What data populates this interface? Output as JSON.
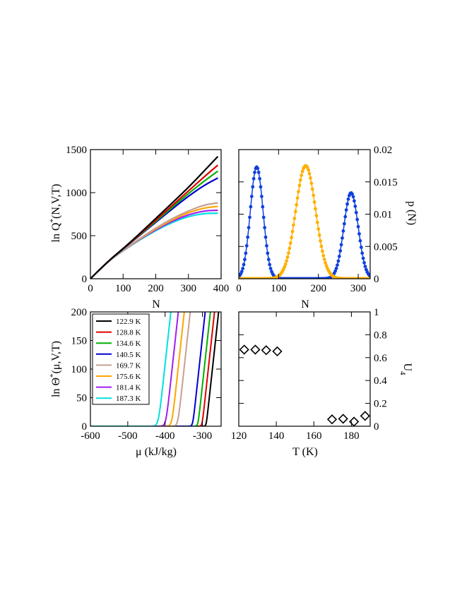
{
  "chart_data": [
    {
      "id": "ln-Q-vs-N",
      "type": "line",
      "xlabel": "N",
      "ylabel_main": "ln Q",
      "ylabel_sup": "*",
      "ylabel_tail": "(N,V,T)",
      "xlim": [
        0,
        400
      ],
      "ylim": [
        0,
        1500
      ],
      "xticks": [
        0,
        100,
        200,
        300,
        400
      ],
      "yticks": [
        0,
        500,
        1000,
        1500
      ],
      "x": [
        0,
        50,
        100,
        150,
        200,
        250,
        300,
        350,
        390
      ],
      "series": [
        {
          "name": "122.9 K",
          "color": "#000000",
          "values": [
            0,
            190,
            350,
            520,
            700,
            880,
            1060,
            1260,
            1420
          ]
        },
        {
          "name": "128.8 K",
          "color": "#e00000",
          "values": [
            0,
            190,
            350,
            510,
            680,
            850,
            1020,
            1190,
            1320
          ]
        },
        {
          "name": "134.6 K",
          "color": "#00b000",
          "values": [
            0,
            190,
            350,
            505,
            665,
            830,
            990,
            1140,
            1250
          ]
        },
        {
          "name": "140.5 K",
          "color": "#0000d0",
          "values": [
            0,
            190,
            345,
            500,
            655,
            810,
            960,
            1090,
            1170
          ]
        },
        {
          "name": "169.7 K",
          "color": "#c8a090",
          "values": [
            0,
            190,
            330,
            465,
            590,
            700,
            790,
            860,
            880
          ]
        },
        {
          "name": "175.6 K",
          "color": "#ffa500",
          "values": [
            0,
            190,
            330,
            460,
            580,
            685,
            770,
            825,
            840
          ]
        },
        {
          "name": "181.4 K",
          "color": "#a020f0",
          "values": [
            0,
            190,
            328,
            455,
            570,
            670,
            745,
            790,
            795
          ]
        },
        {
          "name": "187.3 K",
          "color": "#00e0e0",
          "values": [
            0,
            190,
            325,
            450,
            560,
            655,
            725,
            760,
            760
          ]
        }
      ]
    },
    {
      "id": "p-vs-N",
      "type": "scatter",
      "xlabel": "N",
      "ylabel": "p (N)",
      "xlim": [
        0,
        330
      ],
      "ylim": [
        0,
        0.02
      ],
      "xticks": [
        0,
        100,
        200,
        300
      ],
      "yticks": [
        0,
        0.005,
        0.01,
        0.015,
        0.02
      ],
      "ytick_labels": [
        "0",
        "0.005",
        "0.01",
        "0.015",
        "0.02"
      ],
      "series": [
        {
          "name": "",
          "color": "#1040e0",
          "peaks": [
            {
              "center": 45,
              "height": 0.0173,
              "width": 16
            },
            {
              "center": 282,
              "height": 0.0133,
              "width": 18
            }
          ],
          "x_range": [
            0,
            330
          ]
        },
        {
          "name": "",
          "color": "#ffb000",
          "peaks": [
            {
              "center": 168,
              "height": 0.0175,
              "width": 25
            }
          ],
          "x_range": [
            0,
            330
          ]
        }
      ]
    },
    {
      "id": "ln-Theta-vs-mu",
      "type": "line",
      "xlabel": "μ (kJ/kg)",
      "ylabel_main": "ln Θ",
      "ylabel_sup": "*",
      "ylabel_tail": "(μ,V,T)",
      "xlim": [
        -600,
        -250
      ],
      "ylim": [
        0,
        200
      ],
      "xticks": [
        -600,
        -500,
        -400,
        -300
      ],
      "yticks": [
        0,
        50,
        100,
        150,
        200
      ],
      "legend_position": "top-left",
      "series": [
        {
          "name": "122.9 K",
          "color": "#000000",
          "mu_c": -290,
          "scale": 8
        },
        {
          "name": "128.8 K",
          "color": "#e00000",
          "mu_c": -301,
          "scale": 9
        },
        {
          "name": "134.6 K",
          "color": "#00b000",
          "mu_c": -312,
          "scale": 10
        },
        {
          "name": "140.5 K",
          "color": "#0000d0",
          "mu_c": -326,
          "scale": 11
        },
        {
          "name": "169.7 K",
          "color": "#c8a090",
          "mu_c": -366,
          "scale": 16
        },
        {
          "name": "175.6 K",
          "color": "#ffa500",
          "mu_c": -382,
          "scale": 17
        },
        {
          "name": "181.4 K",
          "color": "#a020f0",
          "mu_c": -398,
          "scale": 18
        },
        {
          "name": "187.3 K",
          "color": "#00e0e0",
          "mu_c": -418,
          "scale": 20
        }
      ]
    },
    {
      "id": "U4-vs-T",
      "type": "scatter",
      "xlabel": "T (K)",
      "ylabel_main": "U",
      "ylabel_sub": "4",
      "xlim": [
        120,
        190
      ],
      "ylim": [
        0,
        1
      ],
      "xticks": [
        120,
        140,
        160,
        180
      ],
      "yticks": [
        0,
        0.2,
        0.4,
        0.6,
        0.8,
        1
      ],
      "ytick_labels": [
        "0",
        "0.2",
        "0.4",
        "0.6",
        "0.8",
        "1"
      ],
      "x": [
        122.9,
        128.8,
        134.6,
        140.5,
        169.7,
        175.6,
        181.4,
        187.3
      ],
      "values": [
        0.67,
        0.67,
        0.665,
        0.655,
        0.06,
        0.065,
        0.04,
        0.09
      ]
    }
  ]
}
